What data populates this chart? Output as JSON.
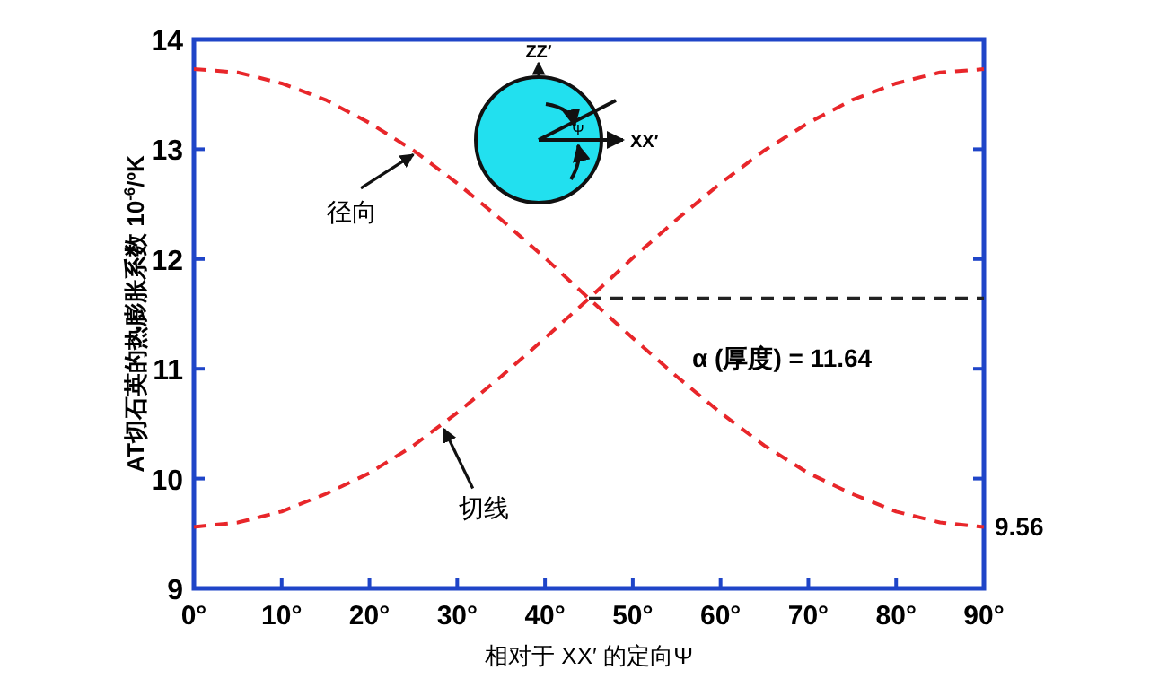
{
  "chart_data": {
    "type": "line",
    "xlabel": "相对于 XX′ 的定向Ψ",
    "ylabel": "AT切石英的热膨胀系数 10$^{-6}$/ºK",
    "x": [
      0,
      5,
      10,
      15,
      20,
      25,
      30,
      35,
      40,
      45,
      50,
      55,
      60,
      65,
      70,
      75,
      80,
      85,
      90
    ],
    "series": [
      {
        "name": "径向",
        "color": "#e8262a",
        "values": [
          13.73,
          13.7,
          13.6,
          13.45,
          13.24,
          12.99,
          12.69,
          12.36,
          12.01,
          11.64,
          11.28,
          10.93,
          10.6,
          10.3,
          10.05,
          9.86,
          9.7,
          9.6,
          9.56
        ]
      },
      {
        "name": "切线",
        "color": "#e8262a",
        "values": [
          9.56,
          9.6,
          9.7,
          9.86,
          10.05,
          10.3,
          10.6,
          10.93,
          11.28,
          11.64,
          12.01,
          12.36,
          12.69,
          12.99,
          13.24,
          13.45,
          13.6,
          13.7,
          13.73
        ]
      },
      {
        "type": "line",
        "color": "#222222",
        "x": [
          45,
          90
        ],
        "values": [
          11.64,
          11.64
        ]
      }
    ],
    "line_style": "dashed",
    "marker": "none",
    "grid": false,
    "xlim": [
      0,
      90
    ],
    "ylim": [
      9,
      14
    ],
    "xticks": [
      {
        "value": 0,
        "label": "0°"
      },
      {
        "value": 10,
        "label": "10°"
      },
      {
        "value": 20,
        "label": "20°"
      },
      {
        "value": 30,
        "label": "30°"
      },
      {
        "value": 40,
        "label": "40°"
      },
      {
        "value": 50,
        "label": "50°"
      },
      {
        "value": 60,
        "label": "60°"
      },
      {
        "value": 70,
        "label": "70°"
      },
      {
        "value": 80,
        "label": "80°"
      },
      {
        "value": 90,
        "label": "90°"
      }
    ],
    "yticks": [
      9,
      10,
      11,
      12,
      13,
      14
    ],
    "annotations": [
      {
        "text": "α (厚度) = 11.64",
        "x": 67,
        "y": 11.64
      },
      {
        "text": "9.56",
        "x": 90,
        "y": 9.56
      },
      "ZZ′",
      "XX′",
      "Ψ"
    ]
  }
}
